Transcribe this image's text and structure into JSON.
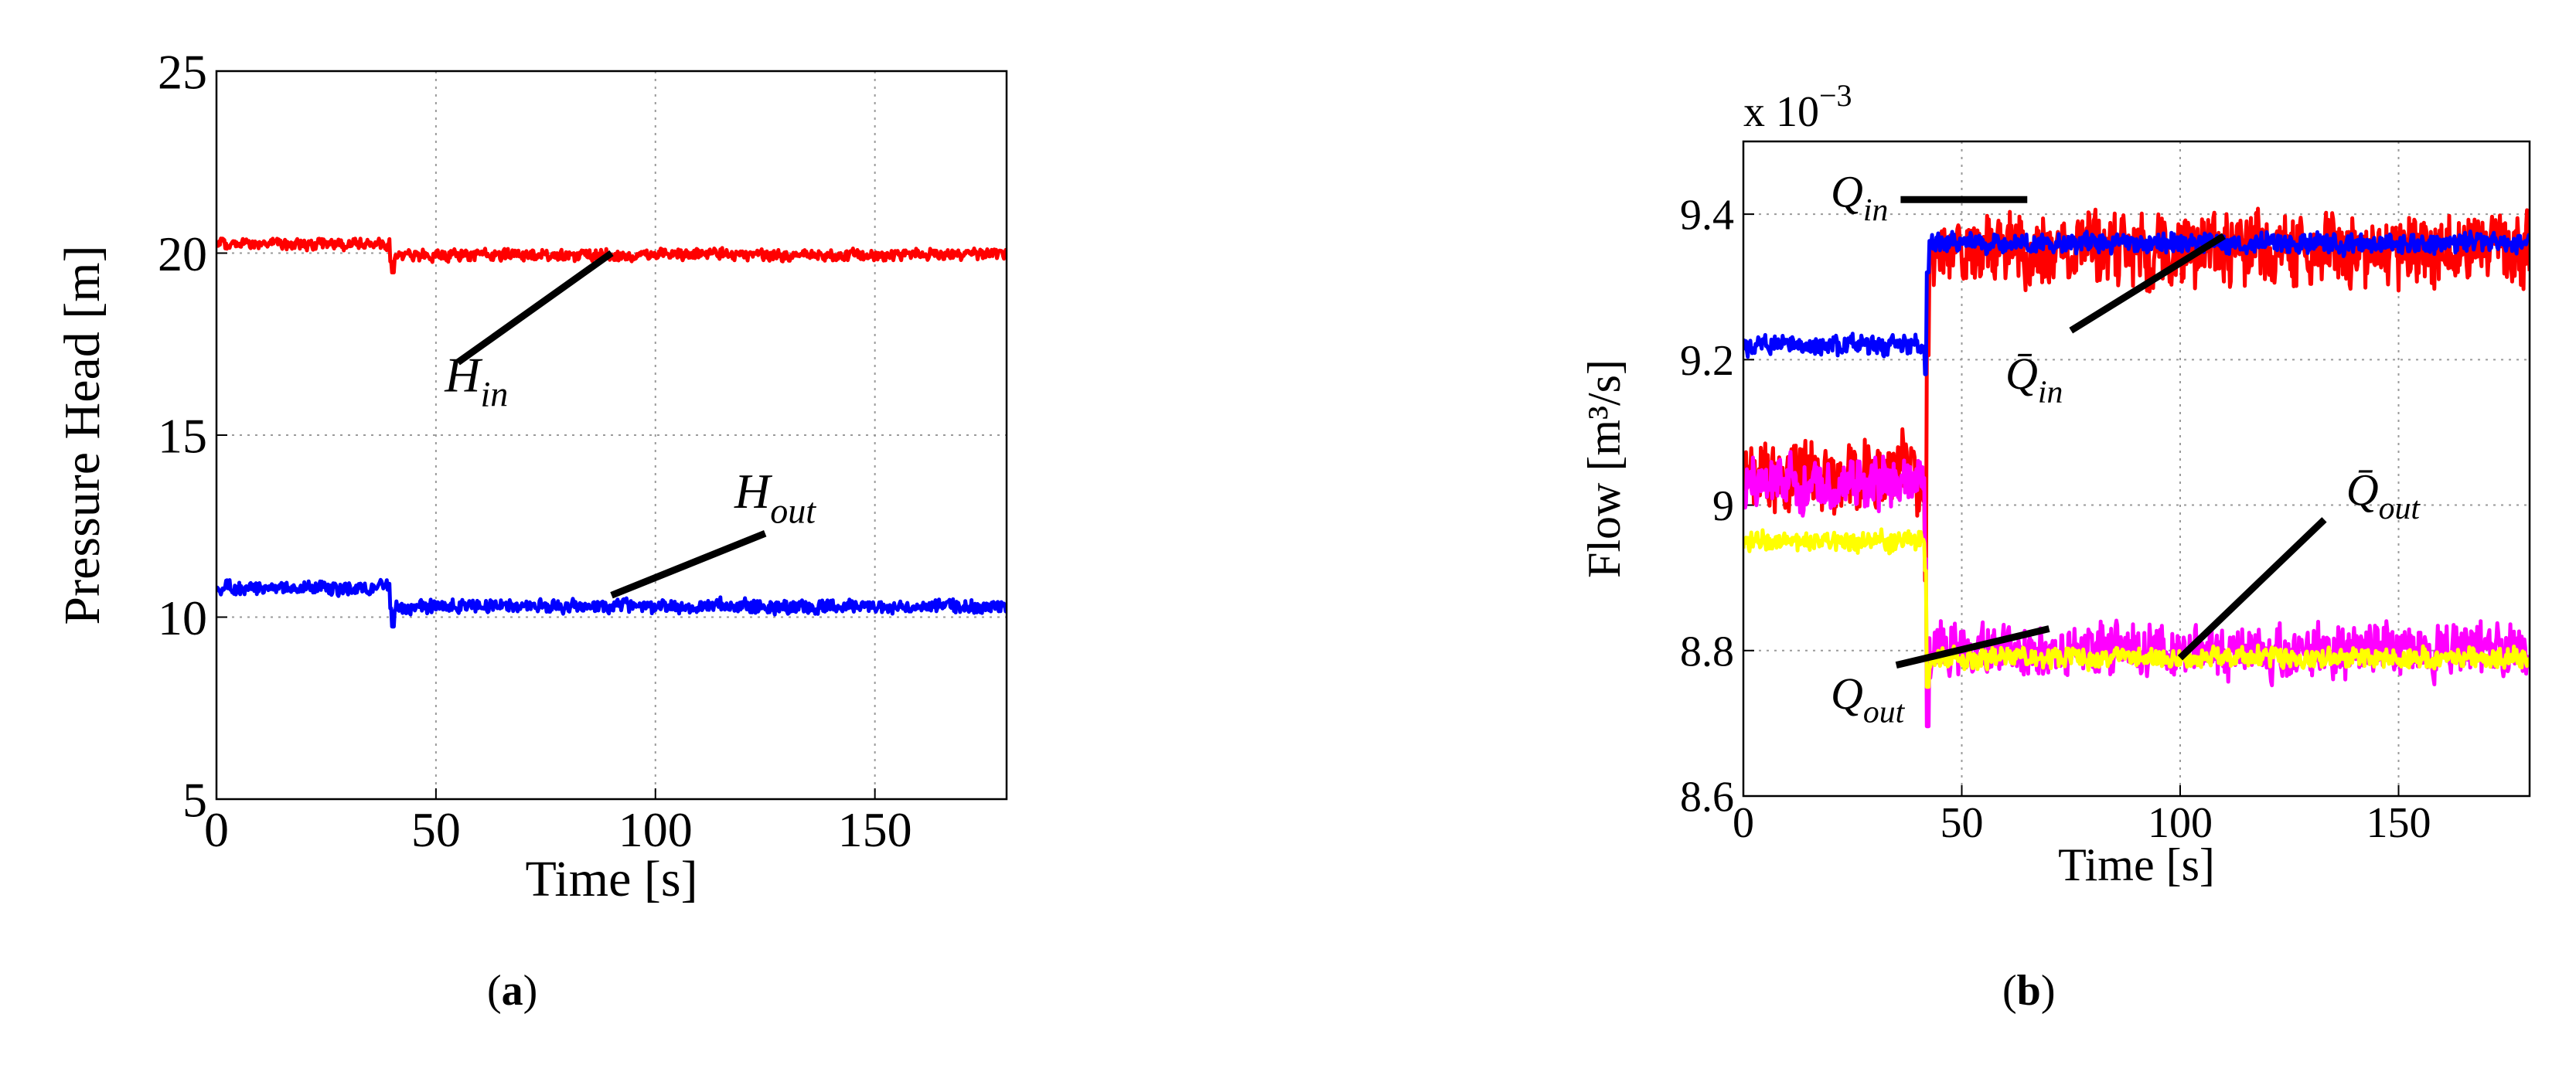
{
  "chart_data": [
    {
      "type": "line",
      "panel": "(a)",
      "caption_letter": "a",
      "xlabel": "Time [s]",
      "ylabel": "Pressure Head [m]",
      "xlim": [
        0,
        180
      ],
      "ylim": [
        5,
        25
      ],
      "xticks": [
        0,
        50,
        100,
        150
      ],
      "yticks": [
        5,
        10,
        15,
        20,
        25
      ],
      "grid": true,
      "series": [
        {
          "name": "H_in",
          "color": "#ff0000",
          "step_time": 40,
          "before": 20.25,
          "after": 19.95,
          "noise": 0.3
        },
        {
          "name": "H_out",
          "color": "#0000ff",
          "step_time": 40,
          "before": 10.8,
          "after": 10.3,
          "noise": 0.35
        }
      ],
      "annotations": [
        {
          "label": "H",
          "sub": "in",
          "text": "Hin",
          "line_from": [
            55,
            17.0
          ],
          "line_to": [
            90,
            20.0
          ],
          "text_at": [
            52,
            16.2
          ]
        },
        {
          "label": "H",
          "sub": "out",
          "text": "Hout",
          "line_from": [
            90,
            10.6
          ],
          "line_to": [
            125,
            12.3
          ],
          "text_at": [
            118,
            13.0
          ]
        }
      ]
    },
    {
      "type": "line",
      "panel": "(b)",
      "caption_letter": "b",
      "xlabel": "Time [s]",
      "ylabel": "Flow [m³/s]",
      "xlim": [
        0,
        180
      ],
      "ylim": [
        8.6,
        9.5
      ],
      "xticks": [
        0,
        50,
        100,
        150
      ],
      "yticks": [
        8.6,
        8.8,
        9.0,
        9.2,
        9.4
      ],
      "ytick_labels": [
        "8.6",
        "8.8",
        "9",
        "9.2",
        "9.4"
      ],
      "scale_label": "x 10",
      "scale_exponent": "−3",
      "grid": true,
      "series": [
        {
          "name": "Q_in",
          "color": "#ff0000",
          "step_time": 42,
          "before": 9.04,
          "after": 9.35,
          "noise": 0.09
        },
        {
          "name": "Q_out",
          "color": "#ff00ff",
          "step_time": 42,
          "before": 9.03,
          "after": 8.8,
          "noise": 0.065
        },
        {
          "name": "Q̄_out",
          "color": "#ffff00",
          "step_time": 42,
          "before": 8.95,
          "after": 8.79,
          "noise": 0.025
        },
        {
          "name": "Q̄_in",
          "color": "#0000ff",
          "step_time": 42,
          "before": 9.22,
          "after": 9.36,
          "noise": 0.025
        }
      ],
      "annotations": [
        {
          "label": "Q",
          "sub": "in",
          "text": "Qin",
          "line_from": [
            36,
            9.42
          ],
          "line_to": [
            65,
            9.42
          ],
          "text_at": [
            20,
            9.41
          ]
        },
        {
          "label": "Q̄",
          "sub": "in",
          "text": "Q̄in",
          "line_from": [
            75,
            9.24
          ],
          "line_to": [
            110,
            9.37
          ],
          "text_at": [
            60,
            9.16
          ]
        },
        {
          "label": "Q",
          "sub": "out",
          "text": "Qout",
          "line_from": [
            35,
            8.78
          ],
          "line_to": [
            70,
            8.83
          ],
          "text_at": [
            20,
            8.72
          ]
        },
        {
          "label": "Q̄",
          "sub": "out",
          "text": "Q̄out",
          "line_from": [
            100,
            8.79
          ],
          "line_to": [
            133,
            8.98
          ],
          "text_at": [
            138,
            9.0
          ]
        }
      ]
    }
  ]
}
